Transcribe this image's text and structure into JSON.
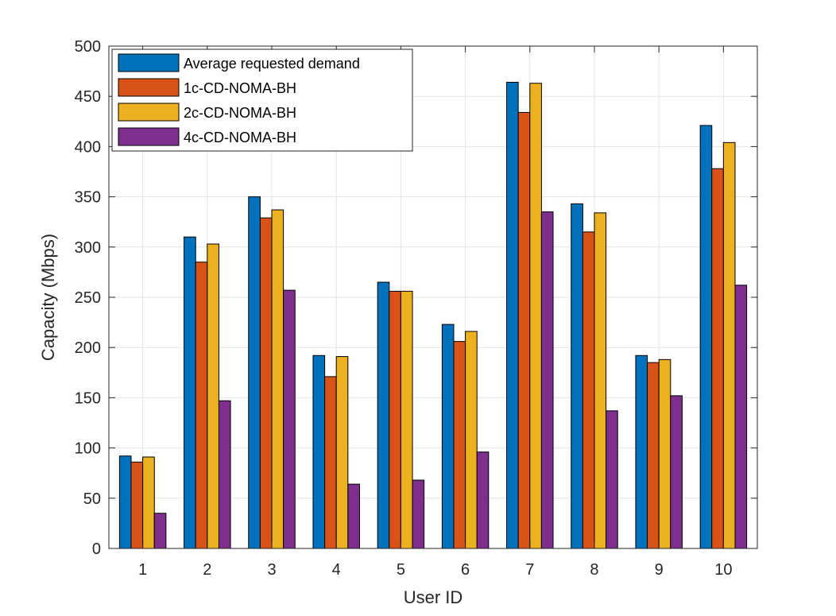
{
  "chart_data": {
    "type": "bar",
    "title": "",
    "xlabel": "User ID",
    "ylabel": "Capacity (Mbps)",
    "ylim": [
      0,
      500
    ],
    "yticks": [
      0,
      50,
      100,
      150,
      200,
      250,
      300,
      350,
      400,
      450,
      500
    ],
    "grid": true,
    "legend_position": "top-left",
    "categories": [
      "1",
      "2",
      "3",
      "4",
      "5",
      "6",
      "7",
      "8",
      "9",
      "10"
    ],
    "series": [
      {
        "name": "Average requested demand",
        "color": "#0072BD",
        "values": [
          92,
          310,
          350,
          192,
          265,
          223,
          464,
          343,
          192,
          421
        ]
      },
      {
        "name": "1c-CD-NOMA-BH",
        "color": "#D95319",
        "values": [
          86,
          285,
          329,
          171,
          256,
          206,
          434,
          315,
          185,
          378
        ]
      },
      {
        "name": "2c-CD-NOMA-BH",
        "color": "#EDB120",
        "values": [
          91,
          303,
          337,
          191,
          256,
          216,
          463,
          334,
          188,
          404
        ]
      },
      {
        "name": "4c-CD-NOMA-BH",
        "color": "#7E2F8E",
        "values": [
          35,
          147,
          257,
          64,
          68,
          96,
          335,
          137,
          152,
          262
        ]
      }
    ]
  }
}
